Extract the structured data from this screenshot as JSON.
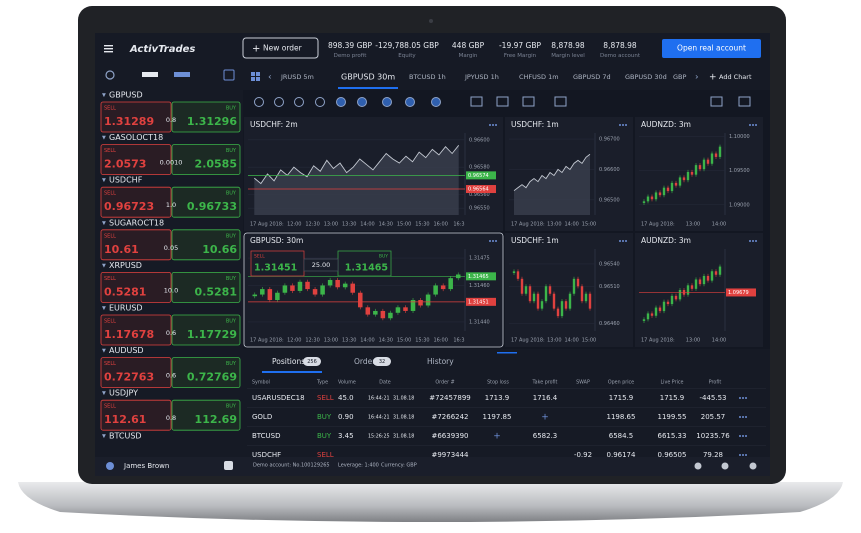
{
  "header": {
    "logo": "ActivTrades",
    "new_order": "New order",
    "stats": [
      {
        "value": "898.39 GBP",
        "label": "Demo profit"
      },
      {
        "value": "-129,788.05 GBP",
        "label": "Equity"
      },
      {
        "value": "448 GBP",
        "label": "Margin"
      },
      {
        "value": "-19.97 GBP",
        "label": "Free Margin"
      },
      {
        "value": "8,878.98",
        "label": "Margin level"
      },
      {
        "value": "8,878.98",
        "label": "Demo account"
      }
    ],
    "cta": "Open real account"
  },
  "watchlist": {
    "items": [
      {
        "name": "GBPUSD",
        "sell_label": "SELL",
        "sell": "1.31289",
        "spread": "0.8",
        "buy_label": "BUY",
        "buy": "1.31296"
      },
      {
        "name": "GASOLOCT18",
        "sell_label": "SELL",
        "sell": "2.0573",
        "spread": "0.0010",
        "buy_label": "BUY",
        "buy": "2.0585"
      },
      {
        "name": "USDCHF",
        "sell_label": "SELL",
        "sell": "0.96723",
        "spread": "1.0",
        "buy_label": "BUY",
        "buy": "0.96733"
      },
      {
        "name": "SUGAROCT18",
        "sell_label": "SELL",
        "sell": "10.61",
        "spread": "0.05",
        "buy_label": "BUY",
        "buy": "10.66"
      },
      {
        "name": "XRPUSD",
        "sell_label": "SELL",
        "sell": "0.5281",
        "spread": "10.0",
        "buy_label": "BUY",
        "buy": "0.5281"
      },
      {
        "name": "EURUSD",
        "sell_label": "SELL",
        "sell": "1.17678",
        "spread": "0.6",
        "buy_label": "BUY",
        "buy": "1.17729"
      },
      {
        "name": "AUDUSD",
        "sell_label": "SELL",
        "sell": "0.72763",
        "spread": "0.6",
        "buy_label": "BUY",
        "buy": "0.72769"
      },
      {
        "name": "USDJPY",
        "sell_label": "SELL",
        "sell": "112.61",
        "spread": "0.8",
        "buy_label": "BUY",
        "buy": "112.69"
      },
      {
        "name": "BTCUSD"
      }
    ]
  },
  "tabs": {
    "items": [
      "JRUSD 5m",
      "GBPUSD 30m",
      "BTCUSD 1h",
      "JPYUSD 1h",
      "CHFUSD 1m",
      "GBPUSD 7d",
      "GBPUSD 30d",
      "GBP"
    ],
    "add": "Add Chart"
  },
  "charts": {
    "colors": {
      "up": "#3cb54a",
      "down": "#e0413f",
      "line": "#c3c8d1"
    },
    "panels": [
      {
        "title": "USDCHF: 2m",
        "type": "area",
        "ylim": [
          0.96545,
          0.96605
        ],
        "yticks": [
          {
            "value": 0.966,
            "label": "0.96600"
          },
          {
            "value": 0.9658,
            "label": "0.96580"
          },
          {
            "value": 0.9656,
            "label": "0.96560"
          },
          {
            "value": 0.9655,
            "label": "0.96550"
          }
        ],
        "markers": [
          {
            "value": 0.96574,
            "label": "0.96574",
            "color": "#3cb54a"
          },
          {
            "value": 0.96564,
            "label": "0.96564",
            "color": "#e0413f"
          }
        ],
        "xlabels": [
          "17 Aug 2018:",
          "12:00",
          "12:30",
          "13:00",
          "13:30",
          "14:00",
          "14:30",
          "15:00",
          "15:30",
          "16:00",
          "16:3"
        ],
        "values": [
          0.96572,
          0.96568,
          0.96575,
          0.9657,
          0.96578,
          0.96574,
          0.9658,
          0.96576,
          0.96573,
          0.96581,
          0.96577,
          0.96585,
          0.96579,
          0.96583,
          0.96576,
          0.9658,
          0.96586,
          0.96582,
          0.96578,
          0.96584,
          0.9659,
          0.96586,
          0.96583,
          0.96588,
          0.96584,
          0.96591,
          0.96587,
          0.96593,
          0.96589,
          0.96595,
          0.9659,
          0.96596
        ]
      },
      {
        "title": "USDCHF: 1m",
        "type": "area",
        "ylim": [
          0.9645,
          0.9672
        ],
        "yticks": [
          {
            "value": 0.967,
            "label": "0.96700"
          },
          {
            "value": 0.966,
            "label": "0.96600"
          },
          {
            "value": 0.965,
            "label": "0.96500"
          }
        ],
        "xlabels": [
          "17 Aug 2018:",
          "13:00",
          "14:00",
          "15:00"
        ],
        "values": [
          0.9653,
          0.9654,
          0.9655,
          0.9654,
          0.9656,
          0.9657,
          0.9656,
          0.9658,
          0.9657,
          0.9659,
          0.9658,
          0.966,
          0.9659,
          0.9661,
          0.966,
          0.9662,
          0.9663,
          0.9662,
          0.9664,
          0.9665
        ]
      },
      {
        "title": "AUDNZD: 3m",
        "type": "candles",
        "ylim": [
          1.0885,
          1.1005
        ],
        "yticks": [
          {
            "value": 1.1,
            "label": "1.10000"
          },
          {
            "value": 1.095,
            "label": "1.09500"
          },
          {
            "value": 1.09,
            "label": "1.09000"
          }
        ],
        "xlabels": [
          "17 Aug 2018:",
          "13:00",
          "14:00"
        ],
        "values": [
          1.0905,
          1.0912,
          1.0908,
          1.0918,
          1.0914,
          1.0925,
          1.092,
          1.0932,
          1.0928,
          1.094,
          1.0936,
          1.0948,
          1.0944,
          1.0958,
          1.0952,
          1.0966,
          1.096,
          1.0975,
          1.097,
          1.0985
        ]
      },
      {
        "title": "GBPUSD: 30m",
        "type": "candles",
        "ylim": [
          1.31435,
          1.3148
        ],
        "yticks": [
          {
            "value": 1.31475,
            "label": "1.31475"
          },
          {
            "value": 1.3146,
            "label": "1.31460"
          },
          {
            "value": 1.3144,
            "label": "1.31440"
          }
        ],
        "markers": [
          {
            "value": 1.31465,
            "label": "1.31465",
            "color": "#3cb54a"
          },
          {
            "value": 1.31451,
            "label": "1.31451",
            "color": "#e0413f"
          }
        ],
        "order": {
          "sell_label": "SELL",
          "sell": "1.31451",
          "volume": "25.00",
          "buy_label": "BUY",
          "buy": "1.31465"
        },
        "xlabels": [
          "17 Aug 2018:",
          "12:00",
          "12:30",
          "13:00",
          "13:30",
          "14:00",
          "14:30",
          "15:00",
          "15:30",
          "16:00",
          "16:3"
        ],
        "values": [
          1.31455,
          1.31458,
          1.31452,
          1.31456,
          1.3146,
          1.31457,
          1.31462,
          1.31458,
          1.31455,
          1.3146,
          1.31463,
          1.31459,
          1.31461,
          1.31456,
          1.31448,
          1.31444,
          1.31446,
          1.31442,
          1.31445,
          1.31448,
          1.31446,
          1.31452,
          1.31449,
          1.31455,
          1.3146,
          1.31458,
          1.31464,
          1.31466
        ]
      },
      {
        "title": "USDCHF: 1m",
        "type": "candles",
        "ylim": [
          0.9645,
          0.9656
        ],
        "yticks": [
          {
            "value": 0.9654,
            "label": "0.96540"
          },
          {
            "value": 0.9651,
            "label": "0.96510"
          },
          {
            "value": 0.9646,
            "label": "0.96460"
          }
        ],
        "xlabels": [
          "17 Aug 2018:",
          "13:00",
          "14:00",
          "15:00"
        ],
        "values": [
          0.9653,
          0.9652,
          0.965,
          0.9651,
          0.9649,
          0.965,
          0.9648,
          0.9649,
          0.9651,
          0.965,
          0.9648,
          0.9647,
          0.9649,
          0.9648,
          0.965,
          0.9652,
          0.9651,
          0.9649,
          0.965,
          0.9648
        ]
      },
      {
        "title": "AUDNZD: 3m",
        "type": "candles",
        "ylim": [
          1.0935,
          1.1005
        ],
        "markers": [
          {
            "value": 1.09679,
            "label": "1.09679",
            "color": "#e0413f"
          }
        ],
        "xlabels": [
          "17 Aug 2018:",
          "13:00",
          "14:00"
        ],
        "values": [
          1.0945,
          1.095,
          1.0948,
          1.0955,
          1.0952,
          1.096,
          1.0958,
          1.0965,
          1.0962,
          1.097,
          1.0966,
          1.0974,
          1.0971,
          1.0979,
          1.0975,
          1.0982,
          1.0978,
          1.0986,
          1.0983,
          1.099
        ]
      }
    ]
  },
  "positions": {
    "tabs": [
      {
        "label": "Positions",
        "count": "256"
      },
      {
        "label": "Orders",
        "count": "32"
      },
      {
        "label": "History"
      }
    ],
    "columns": [
      "Symbol",
      "Type",
      "Volume",
      "Date",
      "Order #",
      "Stop loss",
      "Take profit",
      "SWAP",
      "Open price",
      "Live Price",
      "Profit"
    ],
    "type_colors": [
      "#e0413f",
      "#3cb54a",
      "#3cb54a",
      "#e0413f"
    ],
    "rows": [
      [
        "USARUSDEC18",
        "SELL",
        "45.0",
        "16:44:21",
        "31.08.18",
        "#72457899",
        "1713.9",
        "1716.4",
        null,
        "1715.9",
        "1715.9",
        "-445.53"
      ],
      [
        "GOLD",
        "BUY",
        "0.90",
        "16:44:21",
        "31.08.18",
        "#7266242",
        "1197.85",
        "+",
        null,
        "1198.65",
        "1199.55",
        "205.57"
      ],
      [
        "BTCUSD",
        "BUY",
        "3.45",
        "15:26:25",
        "31.08.18",
        "#6639390",
        "+",
        "6582.3",
        null,
        "6584.5",
        "6615.33",
        "10235.76"
      ],
      [
        "USDCHF",
        "SELL",
        null,
        null,
        null,
        "#9973444",
        null,
        null,
        "-0.92",
        "0.96174",
        "0.96505",
        "79.28"
      ]
    ]
  },
  "footer": {
    "user": "James Brown",
    "account": "Demo account: No.100129265",
    "leverage": "Leverage: 1:400",
    "currency": "Currency: GBP"
  }
}
